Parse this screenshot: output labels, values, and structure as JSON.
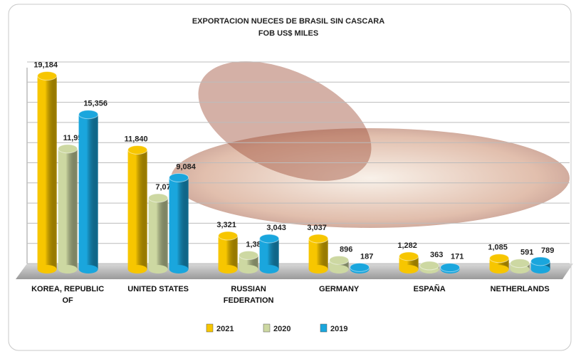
{
  "chart_data": {
    "type": "bar",
    "title": "EXPORTACION NUECES DE BRASIL SIN CASCARA",
    "subtitle": "FOB US$ MILES",
    "categories": [
      "KOREA, REPUBLIC OF",
      "UNITED STATES",
      "RUSSIAN FEDERATION",
      "GERMANY",
      "ESPAÑA",
      "NETHERLANDS"
    ],
    "series": [
      {
        "name": "2021",
        "color": "#f7c600",
        "values": [
          19184,
          11840,
          3321,
          3037,
          1282,
          1085
        ],
        "value_labels": [
          "19,184",
          "11,840",
          "3,321",
          "3,037",
          "1,282",
          "1,085"
        ]
      },
      {
        "name": "2020",
        "color": "#cdd8a2",
        "values": [
          11956,
          7070,
          1384,
          896,
          363,
          591
        ],
        "value_labels": [
          "11,956",
          "7,070",
          "1,384",
          "896",
          "363",
          "591"
        ]
      },
      {
        "name": "2019",
        "color": "#1aa6dd",
        "values": [
          15356,
          9084,
          3043,
          187,
          171,
          789
        ],
        "value_labels": [
          "15,356",
          "9,084",
          "3,043",
          "187",
          "171",
          "789"
        ]
      }
    ],
    "ylim": [
      0,
      20000
    ],
    "yticks": [
      0,
      2000,
      4000,
      6000,
      8000,
      10000,
      12000,
      14000,
      16000,
      18000,
      20000
    ],
    "grid": true
  }
}
